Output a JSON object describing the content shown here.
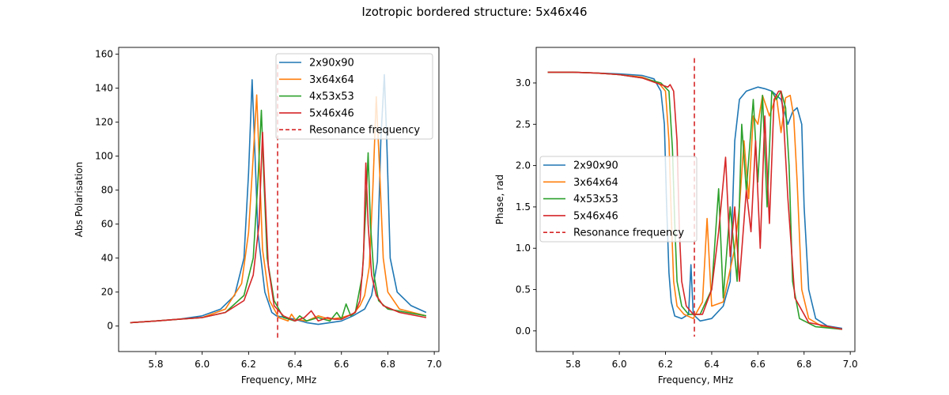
{
  "figure": {
    "title": "Izotropic bordered structure: 5x46x46"
  },
  "colors": {
    "2x90x90": "#1f77b4",
    "3x64x64": "#ff7f0e",
    "4x53x53": "#2ca02c",
    "5x46x46": "#d62728",
    "resonance": "#d62728"
  },
  "chart_data": [
    {
      "type": "line",
      "xlabel": "Frequency, MHz",
      "ylabel": "Abs Polarisation",
      "xlim": [
        5.64,
        7.02
      ],
      "ylim": [
        -15,
        164
      ],
      "xticks": [
        5.8,
        6.0,
        6.2,
        6.4,
        6.6,
        6.8,
        7.0
      ],
      "xtick_labels": [
        "5.8",
        "6.0",
        "6.2",
        "6.4",
        "6.6",
        "6.8",
        "7.0"
      ],
      "yticks": [
        0,
        20,
        40,
        60,
        80,
        100,
        120,
        140,
        160
      ],
      "ytick_labels": [
        "0",
        "20",
        "40",
        "60",
        "80",
        "100",
        "120",
        "140",
        "160"
      ],
      "legend_position": "top-right",
      "resonance_line": {
        "name": "Resonance frequency",
        "x": 6.325,
        "y_range": [
          -7,
          154
        ]
      },
      "series": [
        {
          "name": "2x90x90",
          "x": [
            5.69,
            5.8,
            5.9,
            6.0,
            6.08,
            6.14,
            6.18,
            6.2,
            6.215,
            6.225,
            6.24,
            6.27,
            6.3,
            6.32,
            6.36,
            6.4,
            6.45,
            6.5,
            6.55,
            6.6,
            6.65,
            6.7,
            6.73,
            6.755,
            6.77,
            6.785,
            6.795,
            6.81,
            6.84,
            6.9,
            6.965
          ],
          "y": [
            2,
            3,
            4,
            6,
            10,
            18,
            40,
            90,
            145,
            110,
            55,
            20,
            8,
            6,
            5,
            4,
            2,
            1,
            2,
            3,
            6,
            10,
            18,
            38,
            110,
            148,
            110,
            40,
            20,
            12,
            8
          ]
        },
        {
          "name": "3x64x64",
          "x": [
            5.69,
            5.8,
            5.9,
            6.0,
            6.1,
            6.17,
            6.2,
            6.22,
            6.235,
            6.245,
            6.26,
            6.29,
            6.33,
            6.37,
            6.385,
            6.4,
            6.45,
            6.5,
            6.55,
            6.6,
            6.65,
            6.68,
            6.7,
            6.72,
            6.735,
            6.75,
            6.765,
            6.78,
            6.8,
            6.85,
            6.965
          ],
          "y": [
            2,
            3,
            4,
            5,
            10,
            25,
            55,
            100,
            136,
            100,
            45,
            15,
            5,
            3,
            7,
            4,
            3,
            6,
            4,
            5,
            7,
            12,
            18,
            35,
            80,
            135,
            90,
            40,
            20,
            10,
            6
          ]
        },
        {
          "name": "4x53x53",
          "x": [
            5.69,
            5.8,
            5.9,
            6.0,
            6.1,
            6.18,
            6.22,
            6.24,
            6.255,
            6.265,
            6.28,
            6.31,
            6.35,
            6.4,
            6.42,
            6.45,
            6.5,
            6.55,
            6.58,
            6.6,
            6.62,
            6.64,
            6.66,
            6.69,
            6.705,
            6.715,
            6.725,
            6.74,
            6.76,
            6.8,
            6.965
          ],
          "y": [
            2,
            3,
            4,
            5,
            8,
            18,
            40,
            85,
            127,
            90,
            40,
            15,
            5,
            3,
            6,
            3,
            5,
            3,
            8,
            4,
            13,
            6,
            8,
            30,
            70,
            102,
            60,
            30,
            15,
            10,
            6
          ]
        },
        {
          "name": "5x46x46",
          "x": [
            5.69,
            5.8,
            5.9,
            6.0,
            6.1,
            6.18,
            6.22,
            6.245,
            6.26,
            6.27,
            6.285,
            6.31,
            6.35,
            6.4,
            6.44,
            6.47,
            6.5,
            6.54,
            6.57,
            6.6,
            6.63,
            6.66,
            6.68,
            6.695,
            6.705,
            6.715,
            6.73,
            6.75,
            6.78,
            6.85,
            6.965
          ],
          "y": [
            2,
            3,
            4,
            5,
            8,
            15,
            30,
            60,
            114,
            80,
            35,
            12,
            6,
            3,
            5,
            9,
            3,
            5,
            4,
            4,
            6,
            8,
            15,
            40,
            96,
            60,
            30,
            18,
            12,
            8,
            5
          ]
        }
      ]
    },
    {
      "type": "line",
      "xlabel": "Frequency, MHz",
      "ylabel": "Phase, rad",
      "xlim": [
        5.64,
        7.02
      ],
      "ylim": [
        -0.25,
        3.43
      ],
      "xticks": [
        5.8,
        6.0,
        6.2,
        6.4,
        6.6,
        6.8,
        7.0
      ],
      "xtick_labels": [
        "5.8",
        "6.0",
        "6.2",
        "6.4",
        "6.6",
        "6.8",
        "7.0"
      ],
      "yticks": [
        0.0,
        0.5,
        1.0,
        1.5,
        2.0,
        2.5,
        3.0
      ],
      "ytick_labels": [
        "0.0",
        "0.5",
        "1.0",
        "1.5",
        "2.0",
        "2.5",
        "3.0"
      ],
      "legend_position": "center-left",
      "resonance_line": {
        "name": "Resonance frequency",
        "x": 6.325,
        "y_range": [
          -0.07,
          3.3
        ]
      },
      "series": [
        {
          "name": "2x90x90",
          "x": [
            5.69,
            5.8,
            5.9,
            6.0,
            6.1,
            6.15,
            6.18,
            6.195,
            6.205,
            6.215,
            6.225,
            6.24,
            6.27,
            6.3,
            6.31,
            6.32,
            6.35,
            6.4,
            6.45,
            6.48,
            6.5,
            6.52,
            6.55,
            6.58,
            6.6,
            6.63,
            6.66,
            6.7,
            6.73,
            6.75,
            6.77,
            6.79,
            6.8,
            6.82,
            6.85,
            6.9,
            6.965
          ],
          "y": [
            3.13,
            3.13,
            3.12,
            3.11,
            3.09,
            3.05,
            2.9,
            2.5,
            1.5,
            0.7,
            0.35,
            0.18,
            0.15,
            0.2,
            0.8,
            0.2,
            0.12,
            0.15,
            0.3,
            0.6,
            2.3,
            2.8,
            2.9,
            2.93,
            2.95,
            2.93,
            2.9,
            2.8,
            2.5,
            2.65,
            2.7,
            2.5,
            1.5,
            0.5,
            0.15,
            0.06,
            0.03
          ]
        },
        {
          "name": "3x64x64",
          "x": [
            5.69,
            5.8,
            5.9,
            6.0,
            6.1,
            6.17,
            6.2,
            6.215,
            6.225,
            6.235,
            6.25,
            6.28,
            6.32,
            6.36,
            6.38,
            6.4,
            6.45,
            6.5,
            6.52,
            6.54,
            6.56,
            6.58,
            6.6,
            6.62,
            6.65,
            6.68,
            6.7,
            6.72,
            6.74,
            6.755,
            6.77,
            6.79,
            6.82,
            6.88,
            6.965
          ],
          "y": [
            3.13,
            3.13,
            3.12,
            3.1,
            3.07,
            3.0,
            2.9,
            2.3,
            1.4,
            0.6,
            0.3,
            0.2,
            0.15,
            0.35,
            1.36,
            0.3,
            0.35,
            1.0,
            1.5,
            2.3,
            1.6,
            2.6,
            2.5,
            2.85,
            2.6,
            2.85,
            2.4,
            2.82,
            2.85,
            2.6,
            1.8,
            0.5,
            0.15,
            0.05,
            0.02
          ]
        },
        {
          "name": "4x53x53",
          "x": [
            5.69,
            5.8,
            5.9,
            6.0,
            6.1,
            6.18,
            6.215,
            6.23,
            6.24,
            6.25,
            6.27,
            6.3,
            6.35,
            6.4,
            6.43,
            6.45,
            6.48,
            6.51,
            6.53,
            6.55,
            6.58,
            6.6,
            6.62,
            6.64,
            6.66,
            6.68,
            6.7,
            6.72,
            6.735,
            6.75,
            6.78,
            6.85,
            6.965
          ],
          "y": [
            3.13,
            3.13,
            3.12,
            3.1,
            3.06,
            3.0,
            2.9,
            2.2,
            1.3,
            0.6,
            0.3,
            0.2,
            0.2,
            0.5,
            1.72,
            0.4,
            1.5,
            0.6,
            2.5,
            1.7,
            2.8,
            1.8,
            2.85,
            1.5,
            2.9,
            2.8,
            2.9,
            2.7,
            2.0,
            0.6,
            0.15,
            0.05,
            0.02
          ]
        },
        {
          "name": "5x46x46",
          "x": [
            5.69,
            5.8,
            5.9,
            6.0,
            6.1,
            6.18,
            6.21,
            6.22,
            6.235,
            6.25,
            6.26,
            6.27,
            6.29,
            6.32,
            6.36,
            6.4,
            6.43,
            6.46,
            6.48,
            6.5,
            6.52,
            6.55,
            6.57,
            6.59,
            6.61,
            6.63,
            6.65,
            6.67,
            6.69,
            6.7,
            6.71,
            6.73,
            6.76,
            6.82,
            6.965
          ],
          "y": [
            3.13,
            3.13,
            3.12,
            3.1,
            3.06,
            2.98,
            2.95,
            2.98,
            2.9,
            2.3,
            1.2,
            0.6,
            0.3,
            0.2,
            0.2,
            0.5,
            1.2,
            2.1,
            0.9,
            1.5,
            0.6,
            1.7,
            1.2,
            2.3,
            1.0,
            2.6,
            1.3,
            2.8,
            2.9,
            2.9,
            2.6,
            1.6,
            0.4,
            0.1,
            0.02
          ]
        }
      ]
    }
  ]
}
